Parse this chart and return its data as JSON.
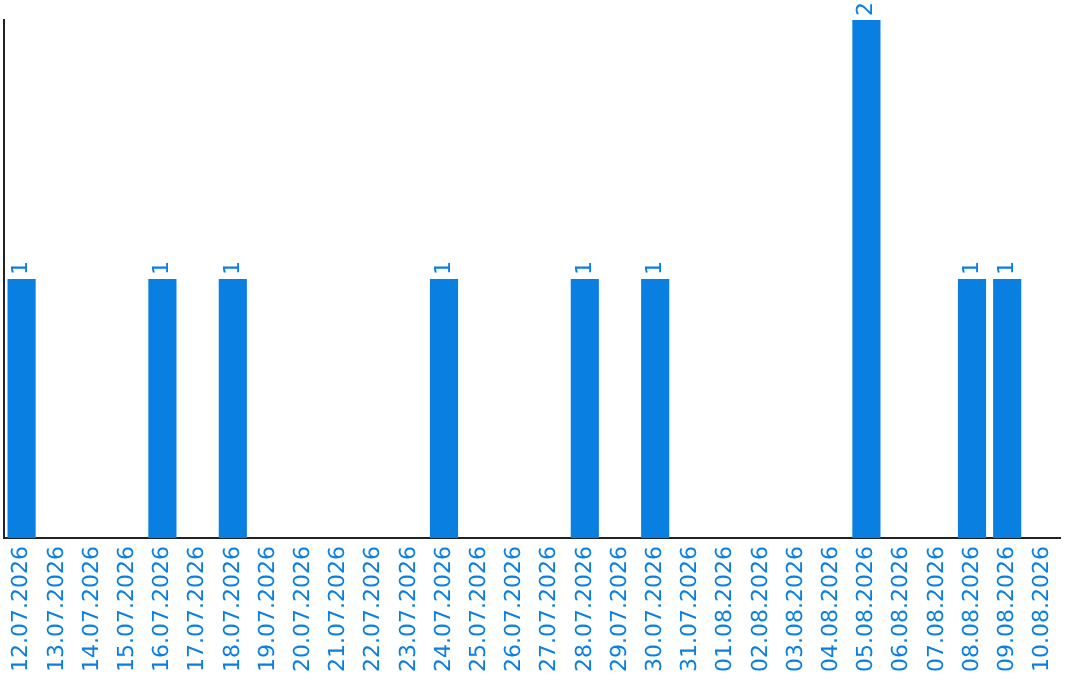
{
  "chart_data": {
    "type": "bar",
    "categories": [
      "12.07.2026",
      "13.07.2026",
      "14.07.2026",
      "15.07.2026",
      "16.07.2026",
      "17.07.2026",
      "18.07.2026",
      "19.07.2026",
      "20.07.2026",
      "21.07.2026",
      "22.07.2026",
      "23.07.2026",
      "24.07.2026",
      "25.07.2026",
      "26.07.2026",
      "27.07.2026",
      "28.07.2026",
      "29.07.2026",
      "30.07.2026",
      "31.07.2026",
      "01.08.2026",
      "02.08.2026",
      "03.08.2026",
      "04.08.2026",
      "05.08.2026",
      "06.08.2026",
      "07.08.2026",
      "08.08.2026",
      "09.08.2026",
      "10.08.2026"
    ],
    "values": [
      1,
      0,
      0,
      0,
      1,
      0,
      1,
      0,
      0,
      0,
      0,
      0,
      1,
      0,
      0,
      0,
      1,
      0,
      1,
      0,
      0,
      0,
      0,
      0,
      2,
      0,
      0,
      1,
      1,
      0
    ],
    "value_labels": [
      "1",
      null,
      null,
      null,
      "1",
      null,
      "1",
      null,
      null,
      null,
      null,
      null,
      "1",
      null,
      null,
      null,
      "1",
      null,
      "1",
      null,
      null,
      null,
      null,
      null,
      "2",
      null,
      null,
      "1",
      "1",
      null
    ],
    "color": "#0a7fe2",
    "grid": false,
    "legend": false,
    "tick_labels": "x"
  }
}
